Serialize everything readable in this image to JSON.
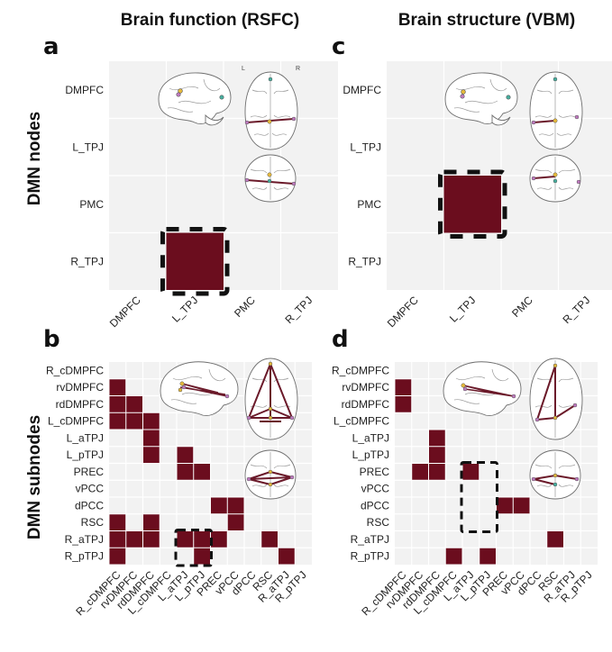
{
  "figure": {
    "col_titles": [
      "Brain function (RSFC)",
      "Brain structure (VBM)"
    ],
    "row_titles": [
      "DMN nodes",
      "DMN subnodes"
    ],
    "panel_letters": [
      "a",
      "b",
      "c",
      "d"
    ],
    "hemisphere_labels": [
      "L",
      "R"
    ]
  },
  "colors": {
    "cell": "#6b0d1e",
    "edge": "#6b1a2a",
    "grid_bg": "#f2f2f2"
  },
  "chart_data": [
    {
      "panel": "a",
      "type": "heatmap",
      "ylabels": [
        "DMPFC",
        "L_TPJ",
        "PMC",
        "R_TPJ"
      ],
      "xlabels": [
        "DMPFC",
        "L_TPJ",
        "PMC",
        "R_TPJ"
      ],
      "cells": [
        [
          3,
          1
        ]
      ],
      "highlight": [
        [
          3,
          1
        ]
      ]
    },
    {
      "panel": "b",
      "type": "heatmap",
      "ylabels": [
        "R_cDMPFC",
        "rvDMPFC",
        "rdDMPFC",
        "L_cDMPFC",
        "L_aTPJ",
        "L_pTPJ",
        "PREC",
        "vPCC",
        "dPCC",
        "RSC",
        "R_aTPJ",
        "R_pTPJ"
      ],
      "xlabels": [
        "R_cDMPFC",
        "rvDMPFC",
        "rdDMPFC",
        "L_cDMPFC",
        "L_aTPJ",
        "L_pTPJ",
        "PREC",
        "vPCC",
        "dPCC",
        "RSC",
        "R_aTPJ",
        "R_pTPJ"
      ],
      "cells": [
        [
          1,
          0
        ],
        [
          2,
          0
        ],
        [
          2,
          1
        ],
        [
          3,
          0
        ],
        [
          3,
          1
        ],
        [
          3,
          2
        ],
        [
          4,
          2
        ],
        [
          5,
          2
        ],
        [
          5,
          4
        ],
        [
          6,
          4
        ],
        [
          6,
          5
        ],
        [
          8,
          6
        ],
        [
          8,
          7
        ],
        [
          9,
          0
        ],
        [
          9,
          2
        ],
        [
          9,
          7
        ],
        [
          10,
          0
        ],
        [
          10,
          1
        ],
        [
          10,
          2
        ],
        [
          10,
          4
        ],
        [
          10,
          5
        ],
        [
          10,
          6
        ],
        [
          10,
          9
        ],
        [
          11,
          0
        ],
        [
          11,
          5
        ],
        [
          11,
          10
        ]
      ],
      "highlight": [
        [
          10,
          4
        ],
        [
          11,
          5
        ]
      ]
    },
    {
      "panel": "c",
      "type": "heatmap",
      "ylabels": [
        "DMPFC",
        "L_TPJ",
        "PMC",
        "R_TPJ"
      ],
      "xlabels": [
        "DMPFC",
        "L_TPJ",
        "PMC",
        "R_TPJ"
      ],
      "cells": [
        [
          2,
          1
        ]
      ],
      "highlight": [
        [
          2,
          1
        ]
      ]
    },
    {
      "panel": "d",
      "type": "heatmap",
      "ylabels": [
        "R_cDMPFC",
        "rvDMPFC",
        "rdDMPFC",
        "L_cDMPFC",
        "L_aTPJ",
        "L_pTPJ",
        "PREC",
        "vPCC",
        "dPCC",
        "RSC",
        "R_aTPJ",
        "R_pTPJ"
      ],
      "xlabels": [
        "R_cDMPFC",
        "rvDMPFC",
        "rdDMPFC",
        "L_cDMPFC",
        "L_aTPJ",
        "L_pTPJ",
        "PREC",
        "vPCC",
        "dPCC",
        "RSC",
        "R_aTPJ",
        "R_pTPJ"
      ],
      "cells": [
        [
          1,
          0
        ],
        [
          2,
          0
        ],
        [
          4,
          2
        ],
        [
          5,
          2
        ],
        [
          6,
          1
        ],
        [
          6,
          2
        ],
        [
          6,
          4
        ],
        [
          8,
          6
        ],
        [
          8,
          7
        ],
        [
          10,
          9
        ],
        [
          11,
          3
        ],
        [
          11,
          5
        ]
      ],
      "highlight": [
        [
          6,
          4
        ],
        [
          9,
          5
        ]
      ]
    }
  ]
}
